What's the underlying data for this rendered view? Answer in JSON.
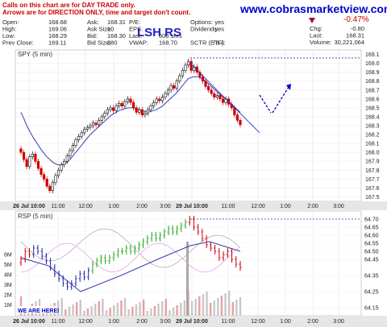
{
  "header": {
    "note_line1": "Calls on this chart are for DAY TRADE only.",
    "note_line2": "Arrows are for DIRECTION ONLY, time and target don't count.",
    "website": "www.cobrasmarketview.com",
    "title_overlay": "LSH RS",
    "change_pct": "-0.47%"
  },
  "quote": {
    "col1": [
      [
        "Open:",
        "168.68"
      ],
      [
        "High:",
        "169.06"
      ],
      [
        "Low:",
        "168.29"
      ],
      [
        "Prev Close:",
        "169.11"
      ]
    ],
    "col2": [
      [
        "Ask:",
        "168.31"
      ],
      [
        "Ask Size:",
        "10"
      ],
      [
        "Bid:",
        "168.30"
      ],
      [
        "Bid Size:",
        "380"
      ]
    ],
    "col3": [
      [
        "P/E:",
        ""
      ],
      [
        "EPS:",
        ""
      ],
      [
        "Last:",
        "500 shrs"
      ],
      [
        "VWAP:",
        "168.70"
      ]
    ],
    "col4": [
      [
        "Options:",
        "yes"
      ],
      [
        "Dividends:",
        "yes"
      ],
      [
        "",
        ""
      ],
      [
        "SCTR (ETF):",
        "78.4"
      ]
    ],
    "col5": [
      [
        "Chg:",
        "-0.80"
      ],
      [
        "Last:",
        "168.31"
      ],
      [
        "Volume:",
        "30,221,064"
      ]
    ]
  },
  "price_panel_label": "SPY (5 min)",
  "rsi_panel_label": "RSP (5 min)",
  "we_are_here": "WE ARE HERE!",
  "colors": {
    "up": "#111111",
    "down": "#cc0000",
    "sma": "#3a3ab8",
    "rsp_up": "#22aa22",
    "rsp_down": "#cc0000",
    "rsp_mid": "#2222aa",
    "arrow": "#0000cc",
    "website": "#0000cc",
    "note": "#cc0000"
  },
  "chart_data": [
    {
      "type": "candlestick",
      "title": "SPY (5 min)",
      "x_ticks": [
        "26 Jul 10:00",
        "11:00",
        "12:00",
        "1:00",
        "2:00",
        "3:00",
        "29 Jul 10:00",
        "11:00",
        "12:00",
        "1:00",
        "2:00",
        "3:00"
      ],
      "y_ticks": [
        167.5,
        167.6,
        167.7,
        167.8,
        167.9,
        168.0,
        168.1,
        168.2,
        168.3,
        168.4,
        168.5,
        168.6,
        168.7,
        168.8,
        168.9,
        169.0,
        169.1
      ],
      "ylim": [
        167.45,
        169.15
      ],
      "close": [
        168.0,
        167.92,
        167.84,
        167.95,
        167.98,
        167.9,
        167.82,
        167.75,
        167.7,
        167.62,
        167.57,
        167.66,
        167.74,
        167.8,
        167.86,
        167.9,
        167.96,
        168.02,
        168.08,
        168.14,
        168.18,
        168.22,
        168.26,
        168.28,
        168.3,
        168.33,
        168.31,
        168.36,
        168.4,
        168.44,
        168.48,
        168.5,
        168.47,
        168.52,
        168.55,
        168.52,
        168.57,
        168.6,
        168.56,
        168.5,
        168.45,
        168.48,
        168.42,
        168.44,
        168.48,
        168.52,
        168.56,
        168.6,
        168.58,
        168.62,
        168.66,
        168.7,
        168.75,
        168.72,
        168.8,
        168.86,
        168.92,
        168.98,
        169.02,
        168.92,
        168.96,
        168.9,
        168.85,
        168.8,
        168.74,
        168.7,
        168.66,
        168.62,
        168.64,
        168.6,
        168.56,
        168.6,
        168.54,
        168.5,
        168.42,
        168.36,
        168.31
      ],
      "sma": [
        168.45,
        168.38,
        168.3,
        168.24,
        168.18,
        168.13,
        168.08,
        168.03,
        167.99,
        167.95,
        167.92,
        167.89,
        167.87,
        167.86,
        167.86,
        167.87,
        167.89,
        167.92,
        167.96,
        168.0,
        168.04,
        168.08,
        168.12,
        168.16,
        168.2,
        168.23,
        168.26,
        168.29,
        168.32,
        168.35,
        168.38,
        168.41,
        168.43,
        168.45,
        168.47,
        168.48,
        168.49,
        168.5,
        168.5,
        168.5,
        168.49,
        168.48,
        168.47,
        168.46,
        168.46,
        168.46,
        168.47,
        168.48,
        168.5,
        168.52,
        168.55,
        168.58,
        168.61,
        168.64,
        168.67,
        168.71,
        168.75,
        168.79,
        168.83,
        168.84,
        168.85,
        168.85,
        168.84,
        168.82,
        168.8,
        168.77,
        168.74,
        168.71,
        168.68,
        168.65,
        168.62,
        168.6,
        168.57,
        168.54,
        168.51,
        168.48,
        168.45
      ],
      "resistance_level": 169.06,
      "trendline": [
        [
          169.0,
          168.58
        ],
        [
          168.58,
          168.22
        ]
      ],
      "direction_arrow": "down then up"
    },
    {
      "type": "line",
      "title": "RSP (5 min)",
      "y_ticks": [
        64.15,
        64.25,
        64.35,
        64.45,
        64.5,
        64.55,
        64.6,
        64.65,
        64.7
      ],
      "volume_ticks": [
        "1M",
        "2M",
        "3M",
        "4M",
        "5M",
        "6M"
      ],
      "ylim": [
        64.1,
        64.75
      ],
      "rsp_close": [
        64.45,
        64.5,
        64.48,
        64.52,
        64.5,
        64.47,
        64.44,
        64.4,
        64.36,
        64.33,
        64.3,
        64.28,
        64.3,
        64.33,
        64.36,
        64.34,
        64.38,
        64.42,
        64.44,
        64.46,
        64.44,
        64.46,
        64.48,
        64.5,
        64.5,
        64.52,
        64.5,
        64.52,
        64.54,
        64.56,
        64.58,
        64.6,
        64.58,
        64.6,
        64.62,
        64.64,
        64.62,
        64.64,
        64.66,
        64.68,
        64.7,
        64.65,
        64.62,
        64.58,
        64.54,
        64.52,
        64.5,
        64.46,
        64.48,
        64.5,
        64.45,
        64.42,
        64.4
      ]
    }
  ]
}
